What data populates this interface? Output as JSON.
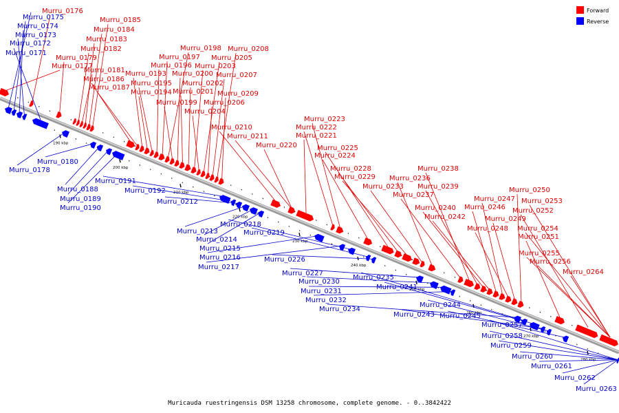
{
  "caption": "Muricauda ruestringensis DSM 13258 chromosome, complete genome. - 0..3842422",
  "legend": [
    {
      "label": "Forward",
      "color": "#ff0000"
    },
    {
      "label": "Reverse",
      "color": "#0000ff"
    }
  ],
  "colors": {
    "forward": "#ff0000",
    "reverse": "#0000ff",
    "backbone": "#888888"
  },
  "ticks": [
    "190 kbp",
    "200 kbp",
    "210 kbp",
    "220 kbp",
    "230 kbp",
    "240 kbp",
    "250 kbp",
    "260 kbp",
    "270 kbp",
    "280 kbp"
  ],
  "forward_genes": [
    "Murru_0176",
    "Murru_0177",
    "Murru_0179",
    "Murru_0181",
    "Murru_0182",
    "Murru_0183",
    "Murru_0184",
    "Murru_0185",
    "Murru_0186",
    "Murru_0187",
    "Murru_0193",
    "Murru_0194",
    "Murru_0195",
    "Murru_0196",
    "Murru_0197",
    "Murru_0198",
    "Murru_0199",
    "Murru_0200",
    "Murru_0201",
    "Murru_0202",
    "Murru_0203",
    "Murru_0204",
    "Murru_0205",
    "Murru_0206",
    "Murru_0207",
    "Murru_0208",
    "Murru_0209",
    "Murru_0210",
    "Murru_0211",
    "Murru_0220",
    "Murru_0221",
    "Murru_0222",
    "Murru_0223",
    "Murru_0224",
    "Murru_0225",
    "Murru_0228",
    "Murru_0229",
    "Murru_0233",
    "Murru_0236",
    "Murru_0237",
    "Murru_0238",
    "Murru_0239",
    "Murru_0240",
    "Murru_0242",
    "Murru_0246",
    "Murru_0247",
    "Murru_0248",
    "Murru_0249",
    "Murru_0250",
    "Murru_0251",
    "Murru_0252",
    "Murru_0253",
    "Murru_0254",
    "Murru_0255",
    "Murru_0256",
    "Murru_0264"
  ],
  "reverse_genes": [
    "Murru_0171",
    "Murru_0172",
    "Murru_0173",
    "Murru_0174",
    "Murru_0175",
    "Murru_0178",
    "Murru_0180",
    "Murru_0188",
    "Murru_0189",
    "Murru_0190",
    "Murru_0191",
    "Murru_0192",
    "Murru_0212",
    "Murru_0213",
    "Murru_0214",
    "Murru_0215",
    "Murru_0216",
    "Murru_0217",
    "Murru_0218",
    "Murru_0219",
    "Murru_0226",
    "Murru_0227",
    "Murru_0230",
    "Murru_0231",
    "Murru_0232",
    "Murru_0234",
    "Murru_0235",
    "Murru_0241",
    "Murru_0243",
    "Murru_0244",
    "Murru_0245",
    "Murru_0257",
    "Murru_0258",
    "Murru_0259",
    "Murru_0260",
    "Murru_0261",
    "Murru_0262",
    "Murru_0263"
  ]
}
